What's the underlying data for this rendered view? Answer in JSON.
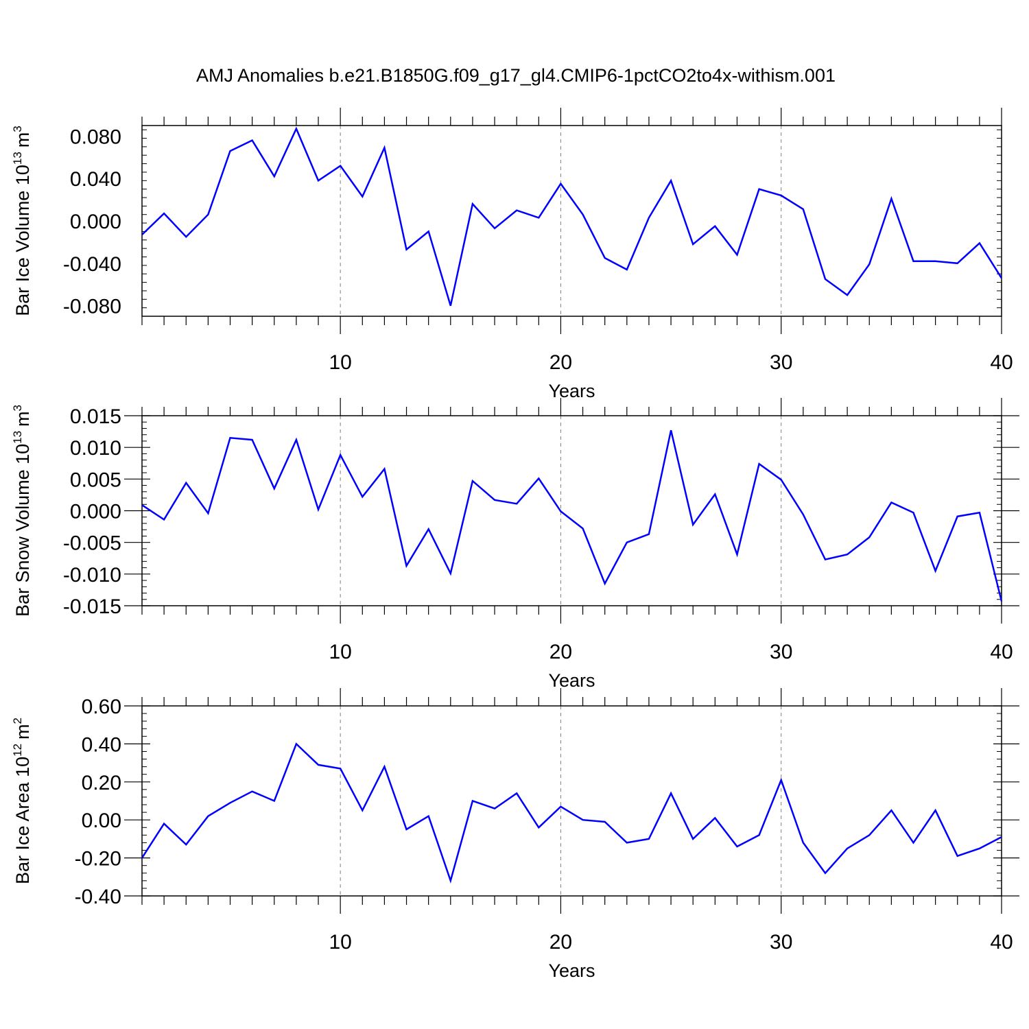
{
  "title": "AMJ Anomalies b.e21.B1850G.f09_g17_gl4.CMIP6-1pctCO2to4x-withism.001",
  "line_color": "#0000ff",
  "grid_color": "#808080",
  "chart_data": [
    {
      "type": "line",
      "ylabel": "Bar Ice Volume 10",
      "ylabel_exp": "13",
      "ylabel_unit": "m",
      "ylabel_unit_exp": "3",
      "xlabel": "Years",
      "xlim": [
        1,
        40
      ],
      "ylim": [
        -0.09,
        0.09
      ],
      "xticks": [
        10,
        20,
        30,
        40
      ],
      "xtick_labels": [
        "10",
        "20",
        "30",
        "40"
      ],
      "yticks": [
        -0.08,
        -0.04,
        0.0,
        0.04,
        0.08
      ],
      "ytick_labels": [
        "-0.080",
        "-0.040",
        "0.000",
        "0.040",
        "0.080"
      ],
      "x": [
        1,
        2,
        3,
        4,
        5,
        6,
        7,
        8,
        9,
        10,
        11,
        12,
        13,
        14,
        15,
        16,
        17,
        18,
        19,
        20,
        21,
        22,
        23,
        24,
        25,
        26,
        27,
        28,
        29,
        30,
        31,
        32,
        33,
        34,
        35,
        36,
        37,
        38,
        39,
        40
      ],
      "values": [
        -0.013,
        0.007,
        -0.015,
        0.006,
        0.066,
        0.076,
        0.042,
        0.087,
        0.038,
        0.052,
        0.023,
        0.069,
        -0.027,
        -0.01,
        -0.08,
        0.016,
        -0.007,
        0.01,
        0.003,
        0.035,
        0.006,
        -0.035,
        -0.046,
        0.003,
        0.038,
        -0.022,
        -0.005,
        -0.032,
        0.03,
        0.024,
        0.011,
        -0.055,
        -0.07,
        -0.041,
        0.021,
        -0.038,
        -0.038,
        -0.04,
        -0.021,
        -0.054
      ]
    },
    {
      "type": "line",
      "ylabel": "Bar Snow Volume 10",
      "ylabel_exp": "13",
      "ylabel_unit": "m",
      "ylabel_unit_exp": "3",
      "xlabel": "Years",
      "xlim": [
        1,
        40
      ],
      "ylim": [
        -0.015,
        0.015
      ],
      "xticks": [
        10,
        20,
        30,
        40
      ],
      "xtick_labels": [
        "10",
        "20",
        "30",
        "40"
      ],
      "yticks": [
        -0.015,
        -0.01,
        -0.005,
        0.0,
        0.005,
        0.01,
        0.015
      ],
      "ytick_labels": [
        "-0.015",
        "-0.010",
        "-0.005",
        "0.000",
        "0.005",
        "0.010",
        "0.015"
      ],
      "x": [
        1,
        2,
        3,
        4,
        5,
        6,
        7,
        8,
        9,
        10,
        11,
        12,
        13,
        14,
        15,
        16,
        17,
        18,
        19,
        20,
        21,
        22,
        23,
        24,
        25,
        26,
        27,
        28,
        29,
        30,
        31,
        32,
        33,
        34,
        35,
        36,
        37,
        38,
        39,
        40
      ],
      "values": [
        0.0009,
        -0.0014,
        0.0044,
        -0.0004,
        0.0115,
        0.0112,
        0.0035,
        0.0112,
        0.0002,
        0.0088,
        0.0022,
        0.0066,
        -0.0087,
        -0.0029,
        -0.0099,
        0.0047,
        0.0017,
        0.0011,
        0.0051,
        -0.0001,
        -0.0028,
        -0.0115,
        -0.005,
        -0.0037,
        0.0127,
        -0.0022,
        0.0026,
        -0.0069,
        0.0074,
        0.0049,
        -0.0006,
        -0.0077,
        -0.0069,
        -0.0042,
        0.0013,
        -0.0003,
        -0.0095,
        -0.0009,
        -0.0003,
        -0.0143
      ]
    },
    {
      "type": "line",
      "ylabel": "Bar Ice Area 10",
      "ylabel_exp": "12",
      "ylabel_unit": "m",
      "ylabel_unit_exp": "2",
      "xlabel": "Years",
      "xlim": [
        1,
        40
      ],
      "ylim": [
        -0.4,
        0.6
      ],
      "xticks": [
        10,
        20,
        30,
        40
      ],
      "xtick_labels": [
        "10",
        "20",
        "30",
        "40"
      ],
      "yticks": [
        -0.4,
        -0.2,
        0.0,
        0.2,
        0.4,
        0.6
      ],
      "ytick_labels": [
        "-0.40",
        "-0.20",
        "0.00",
        "0.20",
        "0.40",
        "0.60"
      ],
      "x": [
        1,
        2,
        3,
        4,
        5,
        6,
        7,
        8,
        9,
        10,
        11,
        12,
        13,
        14,
        15,
        16,
        17,
        18,
        19,
        20,
        21,
        22,
        23,
        24,
        25,
        26,
        27,
        28,
        29,
        30,
        31,
        32,
        33,
        34,
        35,
        36,
        37,
        38,
        39,
        40
      ],
      "values": [
        -0.2,
        -0.02,
        -0.13,
        0.02,
        0.09,
        0.15,
        0.1,
        0.4,
        0.29,
        0.27,
        0.05,
        0.28,
        -0.05,
        0.02,
        -0.32,
        0.1,
        0.06,
        0.14,
        -0.04,
        0.07,
        0.0,
        -0.01,
        -0.12,
        -0.1,
        0.14,
        -0.1,
        0.01,
        -0.14,
        -0.08,
        0.21,
        -0.12,
        -0.28,
        -0.15,
        -0.08,
        0.05,
        -0.12,
        0.05,
        -0.19,
        -0.15,
        -0.09
      ]
    }
  ]
}
